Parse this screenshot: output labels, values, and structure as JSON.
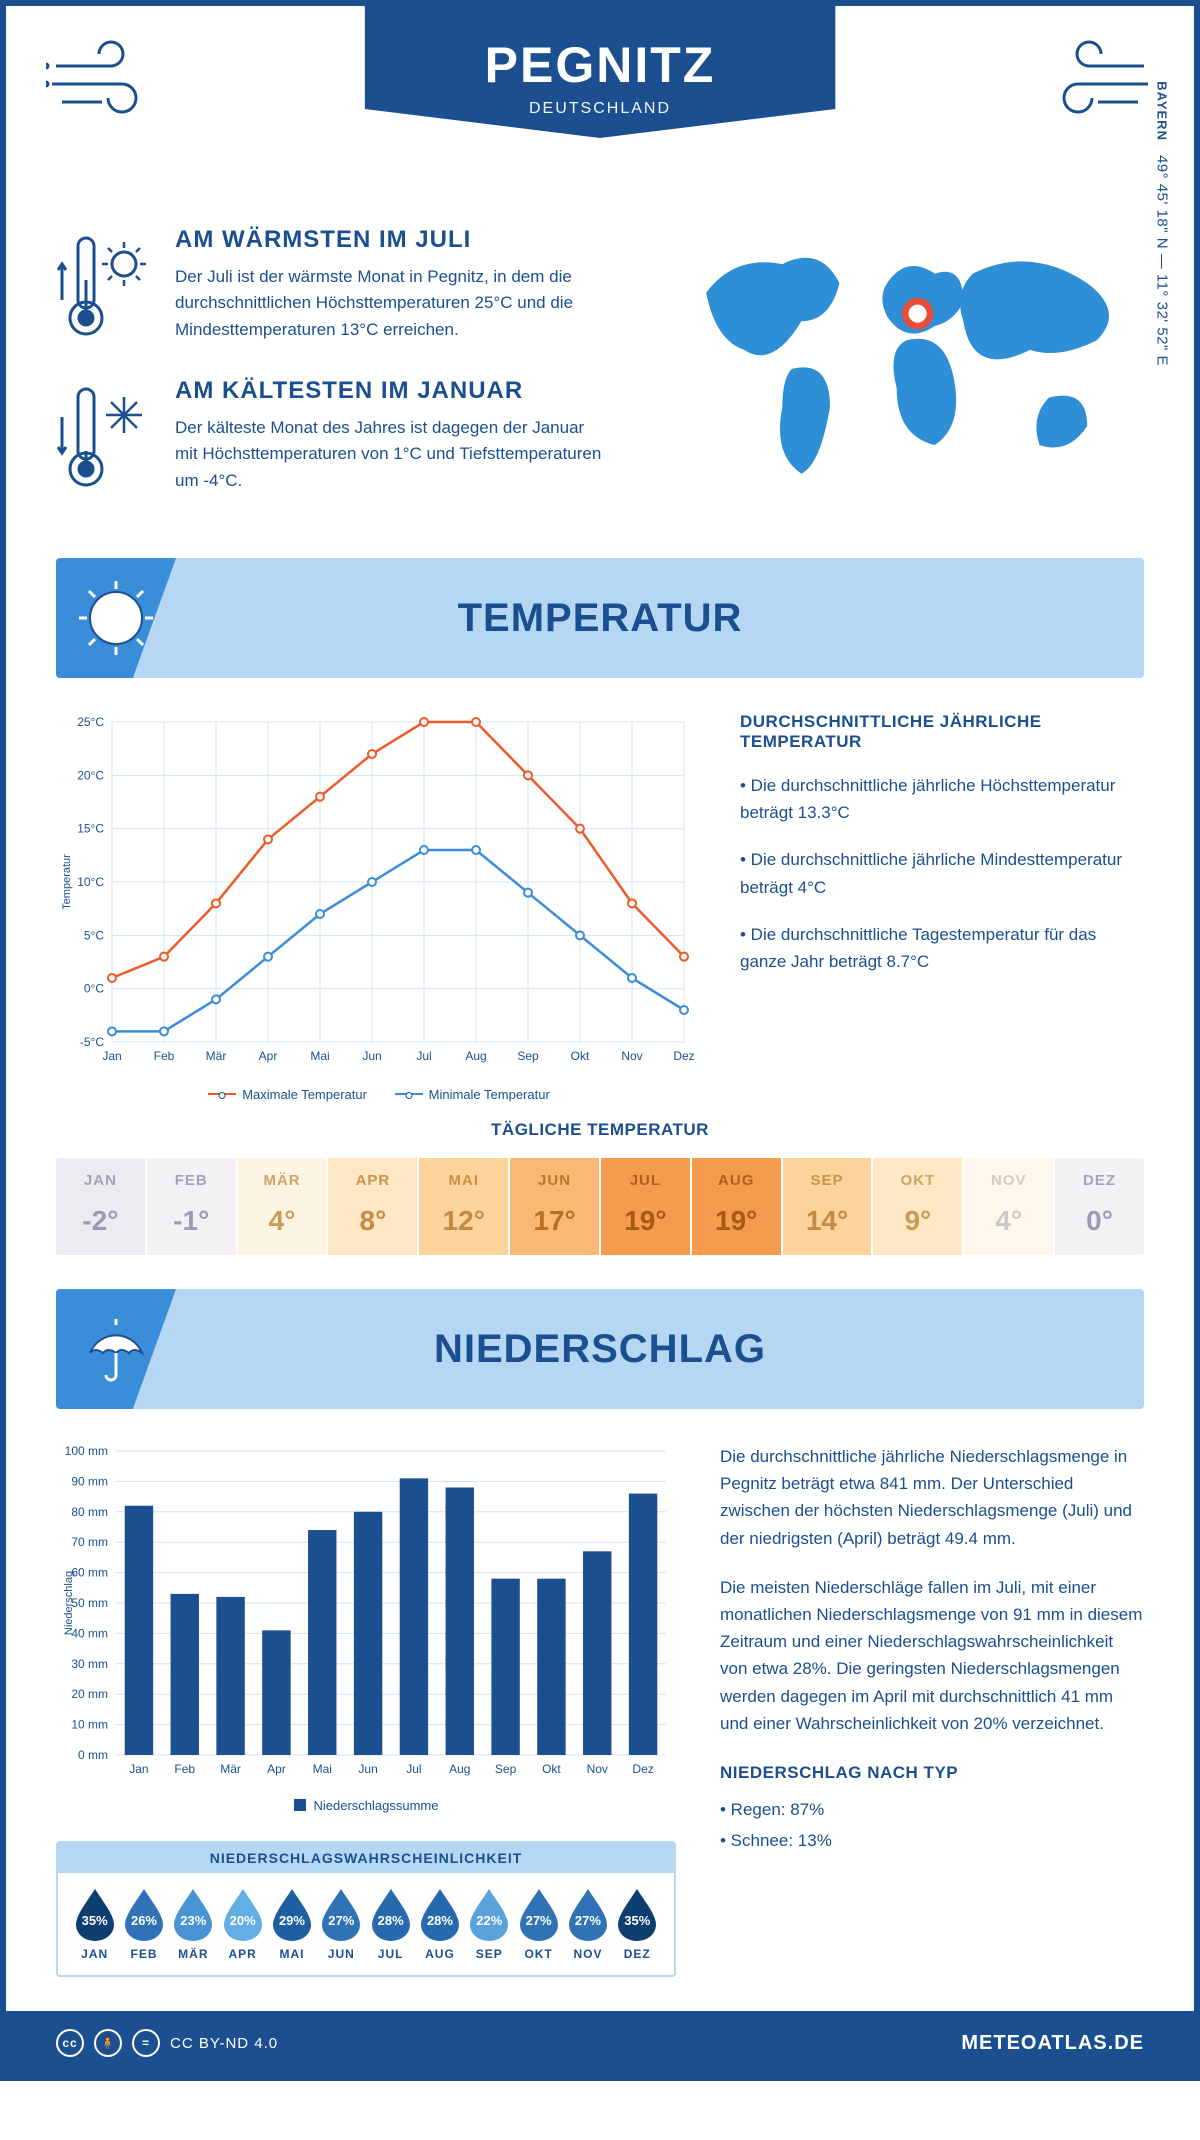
{
  "header": {
    "city": "PEGNITZ",
    "country": "DEUTSCHLAND"
  },
  "coords": {
    "region": "BAYERN",
    "text": "49° 45' 18\" N — 11° 32' 52\" E"
  },
  "warmest": {
    "title": "AM WÄRMSTEN IM JULI",
    "body": "Der Juli ist der wärmste Monat in Pegnitz, in dem die durchschnittlichen Höchsttemperaturen 25°C und die Mindesttemperaturen 13°C erreichen."
  },
  "coldest": {
    "title": "AM KÄLTESTEN IM JANUAR",
    "body": "Der kälteste Monat des Jahres ist dagegen der Januar mit Höchsttemperaturen von 1°C und Tiefsttemperaturen um -4°C."
  },
  "sections": {
    "temperature": "TEMPERATUR",
    "precip": "NIEDERSCHLAG"
  },
  "temp_chart": {
    "months": [
      "Jan",
      "Feb",
      "Mär",
      "Apr",
      "Mai",
      "Jun",
      "Jul",
      "Aug",
      "Sep",
      "Okt",
      "Nov",
      "Dez"
    ],
    "max": [
      1,
      3,
      8,
      14,
      18,
      22,
      25,
      25,
      20,
      15,
      8,
      3
    ],
    "min": [
      -4,
      -4,
      -1,
      3,
      7,
      10,
      13,
      13,
      9,
      5,
      1,
      -2
    ],
    "color_max": "#ef5a28",
    "color_min": "#3a8dd8",
    "ylim": [
      -5,
      25
    ],
    "ytick_step": 5,
    "ylabel": "Temperatur",
    "yunit": "°C",
    "legend_max": "Maximale Temperatur",
    "legend_min": "Minimale Temperatur",
    "grid_color": "#d4e4f5",
    "background": "#ffffff"
  },
  "temp_facts": {
    "title": "DURCHSCHNITTLICHE JÄHRLICHE TEMPERATUR",
    "b1": "• Die durchschnittliche jährliche Höchsttemperatur beträgt 13.3°C",
    "b2": "• Die durchschnittliche jährliche Mindesttemperatur beträgt 4°C",
    "b3": "• Die durchschnittliche Tagestemperatur für das ganze Jahr beträgt 8.7°C"
  },
  "daily_temp": {
    "title": "TÄGLICHE TEMPERATUR",
    "months": [
      "JAN",
      "FEB",
      "MÄR",
      "APR",
      "MAI",
      "JUN",
      "JUL",
      "AUG",
      "SEP",
      "OKT",
      "NOV",
      "DEZ"
    ],
    "values": [
      "-2°",
      "-1°",
      "4°",
      "8°",
      "12°",
      "17°",
      "19°",
      "19°",
      "14°",
      "9°",
      "4°",
      "0°"
    ],
    "bg": [
      "#eeeaf1",
      "#f4f1f5",
      "#fef4e3",
      "#fde7c5",
      "#fdd39c",
      "#f9b874",
      "#f59b4d",
      "#f59b4d",
      "#fdd39c",
      "#fde7c5",
      "#fef7ec",
      "#f4f1f5"
    ],
    "text": [
      "#9b9bb7",
      "#9b9bb7",
      "#c99b59",
      "#c48a42",
      "#c48a42",
      "#b86e23",
      "#a65a13",
      "#a65a13",
      "#c48a42",
      "#c99b59",
      "#c9c9c9",
      "#9b9bb7"
    ]
  },
  "precip_chart": {
    "months": [
      "Jan",
      "Feb",
      "Mär",
      "Apr",
      "Mai",
      "Jun",
      "Jul",
      "Aug",
      "Sep",
      "Okt",
      "Nov",
      "Dez"
    ],
    "values": [
      82,
      53,
      52,
      41,
      74,
      80,
      91,
      88,
      58,
      58,
      67,
      86
    ],
    "color": "#1b4f8f",
    "ylim": [
      0,
      100
    ],
    "ytick_step": 10,
    "ylabel": "Niederschlag",
    "yunit": " mm",
    "legend": "Niederschlagssumme",
    "grid_color": "#d4e4f5"
  },
  "precip_text": {
    "p1": "Die durchschnittliche jährliche Niederschlagsmenge in Pegnitz beträgt etwa 841 mm. Der Unterschied zwischen der höchsten Niederschlagsmenge (Juli) und der niedrigsten (April) beträgt 49.4 mm.",
    "p2": "Die meisten Niederschläge fallen im Juli, mit einer monatlichen Niederschlagsmenge von 91 mm in diesem Zeitraum und einer Niederschlagswahrscheinlichkeit von etwa 28%. Die geringsten Niederschlagsmengen werden dagegen im April mit durchschnittlich 41 mm und einer Wahrscheinlichkeit von 20% verzeichnet.",
    "bytype_title": "NIEDERSCHLAG NACH TYP",
    "bytype_1": "• Regen: 87%",
    "bytype_2": "• Schnee: 13%"
  },
  "prob": {
    "title": "NIEDERSCHLAGSWAHRSCHEINLICHKEIT",
    "months": [
      "JAN",
      "FEB",
      "MÄR",
      "APR",
      "MAI",
      "JUN",
      "JUL",
      "AUG",
      "SEP",
      "OKT",
      "NOV",
      "DEZ"
    ],
    "values": [
      "35%",
      "26%",
      "23%",
      "20%",
      "29%",
      "27%",
      "28%",
      "28%",
      "22%",
      "27%",
      "27%",
      "35%"
    ],
    "colors": [
      "#0e3d70",
      "#2f73b6",
      "#4893d2",
      "#63aee4",
      "#1e5fa2",
      "#2f73b6",
      "#2769ad",
      "#2769ad",
      "#5aa2dc",
      "#2f73b6",
      "#2f73b6",
      "#0e3d70"
    ]
  },
  "footer": {
    "license": "CC BY-ND 4.0",
    "site": "METEOATLAS.DE"
  }
}
